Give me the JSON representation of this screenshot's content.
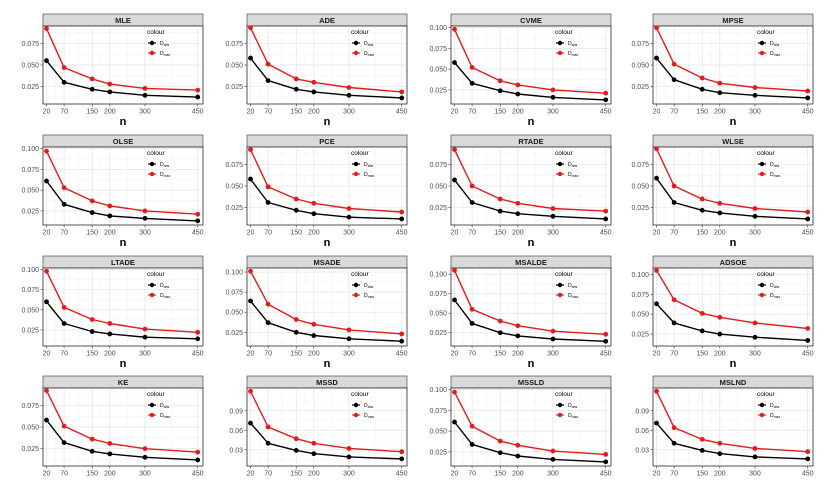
{
  "chart_data": [
    {
      "type": "line",
      "title": "MLE",
      "xlabel": "n",
      "x": [
        20,
        70,
        150,
        200,
        300,
        450
      ],
      "ylim": [
        0.005,
        0.095
      ],
      "yticks": [
        0.025,
        0.05,
        0.075
      ],
      "ytick_labels": [
        "0.025",
        "0.050",
        "0.075"
      ],
      "legend": {
        "title": "colour",
        "position": "top-right"
      },
      "series": [
        {
          "name": "D",
          "subscript": "abs",
          "color": "#000000",
          "values": [
            0.055,
            0.03,
            0.022,
            0.019,
            0.015,
            0.013
          ]
        },
        {
          "name": "D",
          "subscript": "max",
          "color": "#e41a1c",
          "values": [
            0.092,
            0.047,
            0.034,
            0.028,
            0.023,
            0.021
          ]
        }
      ]
    },
    {
      "type": "line",
      "title": "ADE",
      "xlabel": "n",
      "x": [
        20,
        70,
        150,
        200,
        300,
        450
      ],
      "ylim": [
        0.005,
        0.095
      ],
      "yticks": [
        0.025,
        0.05,
        0.075
      ],
      "ytick_labels": [
        "0.025",
        "0.050",
        "0.075"
      ],
      "legend": {
        "title": "colour",
        "position": "top-right"
      },
      "series": [
        {
          "name": "D",
          "subscript": "abs",
          "color": "#000000",
          "values": [
            0.058,
            0.032,
            0.022,
            0.019,
            0.015,
            0.012
          ]
        },
        {
          "name": "D",
          "subscript": "max",
          "color": "#e41a1c",
          "values": [
            0.093,
            0.051,
            0.034,
            0.03,
            0.024,
            0.019
          ]
        }
      ]
    },
    {
      "type": "line",
      "title": "CVME",
      "xlabel": "n",
      "x": [
        20,
        70,
        150,
        200,
        300,
        450
      ],
      "ylim": [
        0.008,
        0.102
      ],
      "yticks": [
        0.025,
        0.05,
        0.075,
        0.1
      ],
      "ytick_labels": [
        "0.025",
        "0.050",
        "0.075",
        "0.100"
      ],
      "legend": {
        "title": "colour",
        "position": "top-right"
      },
      "series": [
        {
          "name": "D",
          "subscript": "abs",
          "color": "#000000",
          "values": [
            0.058,
            0.033,
            0.024,
            0.02,
            0.016,
            0.013
          ]
        },
        {
          "name": "D",
          "subscript": "max",
          "color": "#e41a1c",
          "values": [
            0.098,
            0.052,
            0.036,
            0.031,
            0.025,
            0.021
          ]
        }
      ]
    },
    {
      "type": "line",
      "title": "MPSE",
      "xlabel": "n",
      "x": [
        20,
        70,
        150,
        200,
        300,
        450
      ],
      "ylim": [
        0.005,
        0.095
      ],
      "yticks": [
        0.025,
        0.05,
        0.075
      ],
      "ytick_labels": [
        "0.025",
        "0.050",
        "0.075"
      ],
      "legend": {
        "title": "colour",
        "position": "top-right"
      },
      "series": [
        {
          "name": "D",
          "subscript": "abs",
          "color": "#000000",
          "values": [
            0.058,
            0.033,
            0.022,
            0.018,
            0.015,
            0.012
          ]
        },
        {
          "name": "D",
          "subscript": "max",
          "color": "#e41a1c",
          "values": [
            0.093,
            0.051,
            0.035,
            0.029,
            0.024,
            0.02
          ]
        }
      ]
    },
    {
      "type": "line",
      "title": "OLSE",
      "xlabel": "n",
      "x": [
        20,
        70,
        150,
        200,
        300,
        450
      ],
      "ylim": [
        0.008,
        0.102
      ],
      "yticks": [
        0.025,
        0.05,
        0.075,
        0.1
      ],
      "ytick_labels": [
        "0.025",
        "0.050",
        "0.075",
        "0.100"
      ],
      "legend": {
        "title": "colour",
        "position": "top-right"
      },
      "series": [
        {
          "name": "D",
          "subscript": "abs",
          "color": "#000000",
          "values": [
            0.061,
            0.033,
            0.023,
            0.019,
            0.016,
            0.013
          ]
        },
        {
          "name": "D",
          "subscript": "max",
          "color": "#e41a1c",
          "values": [
            0.097,
            0.053,
            0.037,
            0.031,
            0.025,
            0.021
          ]
        }
      ]
    },
    {
      "type": "line",
      "title": "PCE",
      "xlabel": "n",
      "x": [
        20,
        70,
        150,
        200,
        300,
        450
      ],
      "ylim": [
        0.005,
        0.095
      ],
      "yticks": [
        0.025,
        0.05,
        0.075
      ],
      "ytick_labels": [
        "0.025",
        "0.050",
        "0.075"
      ],
      "legend": {
        "title": "colour",
        "position": "top-right"
      },
      "series": [
        {
          "name": "D",
          "subscript": "abs",
          "color": "#000000",
          "values": [
            0.058,
            0.031,
            0.022,
            0.018,
            0.014,
            0.012
          ]
        },
        {
          "name": "D",
          "subscript": "max",
          "color": "#e41a1c",
          "values": [
            0.092,
            0.049,
            0.035,
            0.03,
            0.024,
            0.02
          ]
        }
      ]
    },
    {
      "type": "line",
      "title": "RTADE",
      "xlabel": "n",
      "x": [
        20,
        70,
        150,
        200,
        300,
        450
      ],
      "ylim": [
        0.005,
        0.095
      ],
      "yticks": [
        0.025,
        0.05,
        0.075
      ],
      "ytick_labels": [
        "0.025",
        "0.050",
        "0.075"
      ],
      "legend": {
        "title": "colour",
        "position": "top-right"
      },
      "series": [
        {
          "name": "D",
          "subscript": "abs",
          "color": "#000000",
          "values": [
            0.057,
            0.031,
            0.021,
            0.018,
            0.015,
            0.012
          ]
        },
        {
          "name": "D",
          "subscript": "max",
          "color": "#e41a1c",
          "values": [
            0.092,
            0.05,
            0.035,
            0.03,
            0.024,
            0.021
          ]
        }
      ]
    },
    {
      "type": "line",
      "title": "WLSE",
      "xlabel": "n",
      "x": [
        20,
        70,
        150,
        200,
        300,
        450
      ],
      "ylim": [
        0.005,
        0.095
      ],
      "yticks": [
        0.025,
        0.05,
        0.075
      ],
      "ytick_labels": [
        "0.025",
        "0.050",
        "0.075"
      ],
      "legend": {
        "title": "colour",
        "position": "top-right"
      },
      "series": [
        {
          "name": "D",
          "subscript": "abs",
          "color": "#000000",
          "values": [
            0.059,
            0.031,
            0.022,
            0.019,
            0.015,
            0.012
          ]
        },
        {
          "name": "D",
          "subscript": "max",
          "color": "#e41a1c",
          "values": [
            0.093,
            0.05,
            0.035,
            0.03,
            0.024,
            0.02
          ]
        }
      ]
    },
    {
      "type": "line",
      "title": "LTADE",
      "xlabel": "n",
      "x": [
        20,
        70,
        150,
        200,
        300,
        450
      ],
      "ylim": [
        0.005,
        0.102
      ],
      "yticks": [
        0.025,
        0.05,
        0.075,
        0.1
      ],
      "ytick_labels": [
        "0.025",
        "0.050",
        "0.075",
        "0.100"
      ],
      "legend": {
        "title": "colour",
        "position": "top-right"
      },
      "series": [
        {
          "name": "D",
          "subscript": "abs",
          "color": "#000000",
          "values": [
            0.06,
            0.033,
            0.023,
            0.02,
            0.016,
            0.014
          ]
        },
        {
          "name": "D",
          "subscript": "max",
          "color": "#e41a1c",
          "values": [
            0.098,
            0.053,
            0.038,
            0.033,
            0.026,
            0.022
          ]
        }
      ]
    },
    {
      "type": "line",
      "title": "MSADE",
      "xlabel": "n",
      "x": [
        20,
        70,
        150,
        200,
        300,
        450
      ],
      "ylim": [
        0.008,
        0.105
      ],
      "yticks": [
        0.025,
        0.05,
        0.075,
        0.1
      ],
      "ytick_labels": [
        "0.025",
        "0.050",
        "0.075",
        "0.100"
      ],
      "legend": {
        "title": "colour",
        "position": "top-right"
      },
      "series": [
        {
          "name": "D",
          "subscript": "abs",
          "color": "#000000",
          "values": [
            0.064,
            0.037,
            0.025,
            0.021,
            0.017,
            0.014
          ]
        },
        {
          "name": "D",
          "subscript": "max",
          "color": "#e41a1c",
          "values": [
            0.101,
            0.06,
            0.041,
            0.035,
            0.028,
            0.023
          ]
        }
      ]
    },
    {
      "type": "line",
      "title": "MSALDE",
      "xlabel": "n",
      "x": [
        20,
        70,
        150,
        200,
        300,
        450
      ],
      "ylim": [
        0.008,
        0.108
      ],
      "yticks": [
        0.025,
        0.05,
        0.075,
        0.1
      ],
      "ytick_labels": [
        "0.025",
        "0.050",
        "0.075",
        "0.100"
      ],
      "legend": {
        "title": "colour",
        "position": "top-right"
      },
      "series": [
        {
          "name": "D",
          "subscript": "abs",
          "color": "#000000",
          "values": [
            0.067,
            0.037,
            0.025,
            0.021,
            0.017,
            0.014
          ]
        },
        {
          "name": "D",
          "subscript": "max",
          "color": "#e41a1c",
          "values": [
            0.105,
            0.055,
            0.04,
            0.034,
            0.027,
            0.023
          ]
        }
      ]
    },
    {
      "type": "line",
      "title": "ADSOE",
      "xlabel": "n",
      "x": [
        20,
        70,
        150,
        200,
        300,
        450
      ],
      "ylim": [
        0.01,
        0.108
      ],
      "yticks": [
        0.025,
        0.05,
        0.075,
        0.1
      ],
      "ytick_labels": [
        "0.025",
        "0.050",
        "0.075",
        "0.100"
      ],
      "legend": {
        "title": "colour",
        "position": "top-right"
      },
      "series": [
        {
          "name": "D",
          "subscript": "abs",
          "color": "#000000",
          "values": [
            0.063,
            0.039,
            0.029,
            0.025,
            0.021,
            0.017
          ]
        },
        {
          "name": "D",
          "subscript": "max",
          "color": "#e41a1c",
          "values": [
            0.105,
            0.068,
            0.051,
            0.046,
            0.039,
            0.032
          ]
        }
      ]
    },
    {
      "type": "line",
      "title": "KE",
      "xlabel": "n",
      "x": [
        20,
        70,
        150,
        200,
        300,
        450
      ],
      "ylim": [
        0.005,
        0.095
      ],
      "yticks": [
        0.025,
        0.05,
        0.075
      ],
      "ytick_labels": [
        "0.025",
        "0.050",
        "0.075"
      ],
      "legend": {
        "title": "colour",
        "position": "top-right"
      },
      "series": [
        {
          "name": "D",
          "subscript": "abs",
          "color": "#000000",
          "values": [
            0.058,
            0.032,
            0.022,
            0.019,
            0.015,
            0.012
          ]
        },
        {
          "name": "D",
          "subscript": "max",
          "color": "#e41a1c",
          "values": [
            0.092,
            0.051,
            0.036,
            0.031,
            0.025,
            0.021
          ]
        }
      ]
    },
    {
      "type": "line",
      "title": "MSSD",
      "xlabel": "n",
      "x": [
        20,
        70,
        150,
        200,
        300,
        450
      ],
      "ylim": [
        0.005,
        0.125
      ],
      "yticks": [
        0.03,
        0.06,
        0.09
      ],
      "ytick_labels": [
        "0.03",
        "0.06",
        "0.09"
      ],
      "legend": {
        "title": "colour",
        "position": "top-right"
      },
      "series": [
        {
          "name": "D",
          "subscript": "abs",
          "color": "#000000",
          "values": [
            0.071,
            0.04,
            0.029,
            0.024,
            0.019,
            0.016
          ]
        },
        {
          "name": "D",
          "subscript": "max",
          "color": "#e41a1c",
          "values": [
            0.12,
            0.065,
            0.047,
            0.04,
            0.032,
            0.027
          ]
        }
      ]
    },
    {
      "type": "line",
      "title": "MSSLD",
      "xlabel": "n",
      "x": [
        20,
        70,
        150,
        200,
        300,
        450
      ],
      "ylim": [
        0.008,
        0.102
      ],
      "yticks": [
        0.025,
        0.05,
        0.075,
        0.1
      ],
      "ytick_labels": [
        "0.025",
        "0.050",
        "0.075",
        "0.100"
      ],
      "legend": {
        "title": "colour",
        "position": "top-right"
      },
      "series": [
        {
          "name": "D",
          "subscript": "abs",
          "color": "#000000",
          "values": [
            0.061,
            0.034,
            0.024,
            0.02,
            0.016,
            0.013
          ]
        },
        {
          "name": "D",
          "subscript": "max",
          "color": "#e41a1c",
          "values": [
            0.097,
            0.056,
            0.038,
            0.033,
            0.026,
            0.022
          ]
        }
      ]
    },
    {
      "type": "line",
      "title": "MSLND",
      "xlabel": "n",
      "x": [
        20,
        70,
        150,
        200,
        300,
        450
      ],
      "ylim": [
        0.005,
        0.125
      ],
      "yticks": [
        0.03,
        0.06,
        0.09
      ],
      "ytick_labels": [
        "0.03",
        "0.06",
        "0.09"
      ],
      "legend": {
        "title": "colour",
        "position": "top-right"
      },
      "series": [
        {
          "name": "D",
          "subscript": "abs",
          "color": "#000000",
          "values": [
            0.071,
            0.04,
            0.029,
            0.024,
            0.019,
            0.016
          ]
        },
        {
          "name": "D",
          "subscript": "max",
          "color": "#e41a1c",
          "values": [
            0.12,
            0.064,
            0.046,
            0.04,
            0.032,
            0.027
          ]
        }
      ]
    }
  ]
}
